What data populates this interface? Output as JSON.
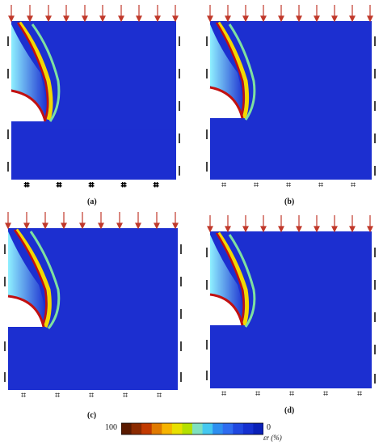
{
  "panels": [
    {
      "id": "a",
      "label": "(a)"
    },
    {
      "id": "b",
      "label": "(b)"
    },
    {
      "id": "c",
      "label": "(c)"
    },
    {
      "id": "d",
      "label": "(d)"
    }
  ],
  "colorbar": {
    "min_label": "100",
    "max_label": "0",
    "unit_label": "εr (%)",
    "colors": [
      "#5a1a00",
      "#8b2a00",
      "#c23a00",
      "#e07a00",
      "#f6b400",
      "#e8e000",
      "#b4e000",
      "#7fe0c0",
      "#45c8f0",
      "#2e8ff0",
      "#2f6cf0",
      "#2048e0",
      "#1530d0",
      "#0a20b8"
    ]
  },
  "colors": {
    "field": "#1c2fd0",
    "arrow": "#c0392b",
    "boundary": "#000000"
  }
}
